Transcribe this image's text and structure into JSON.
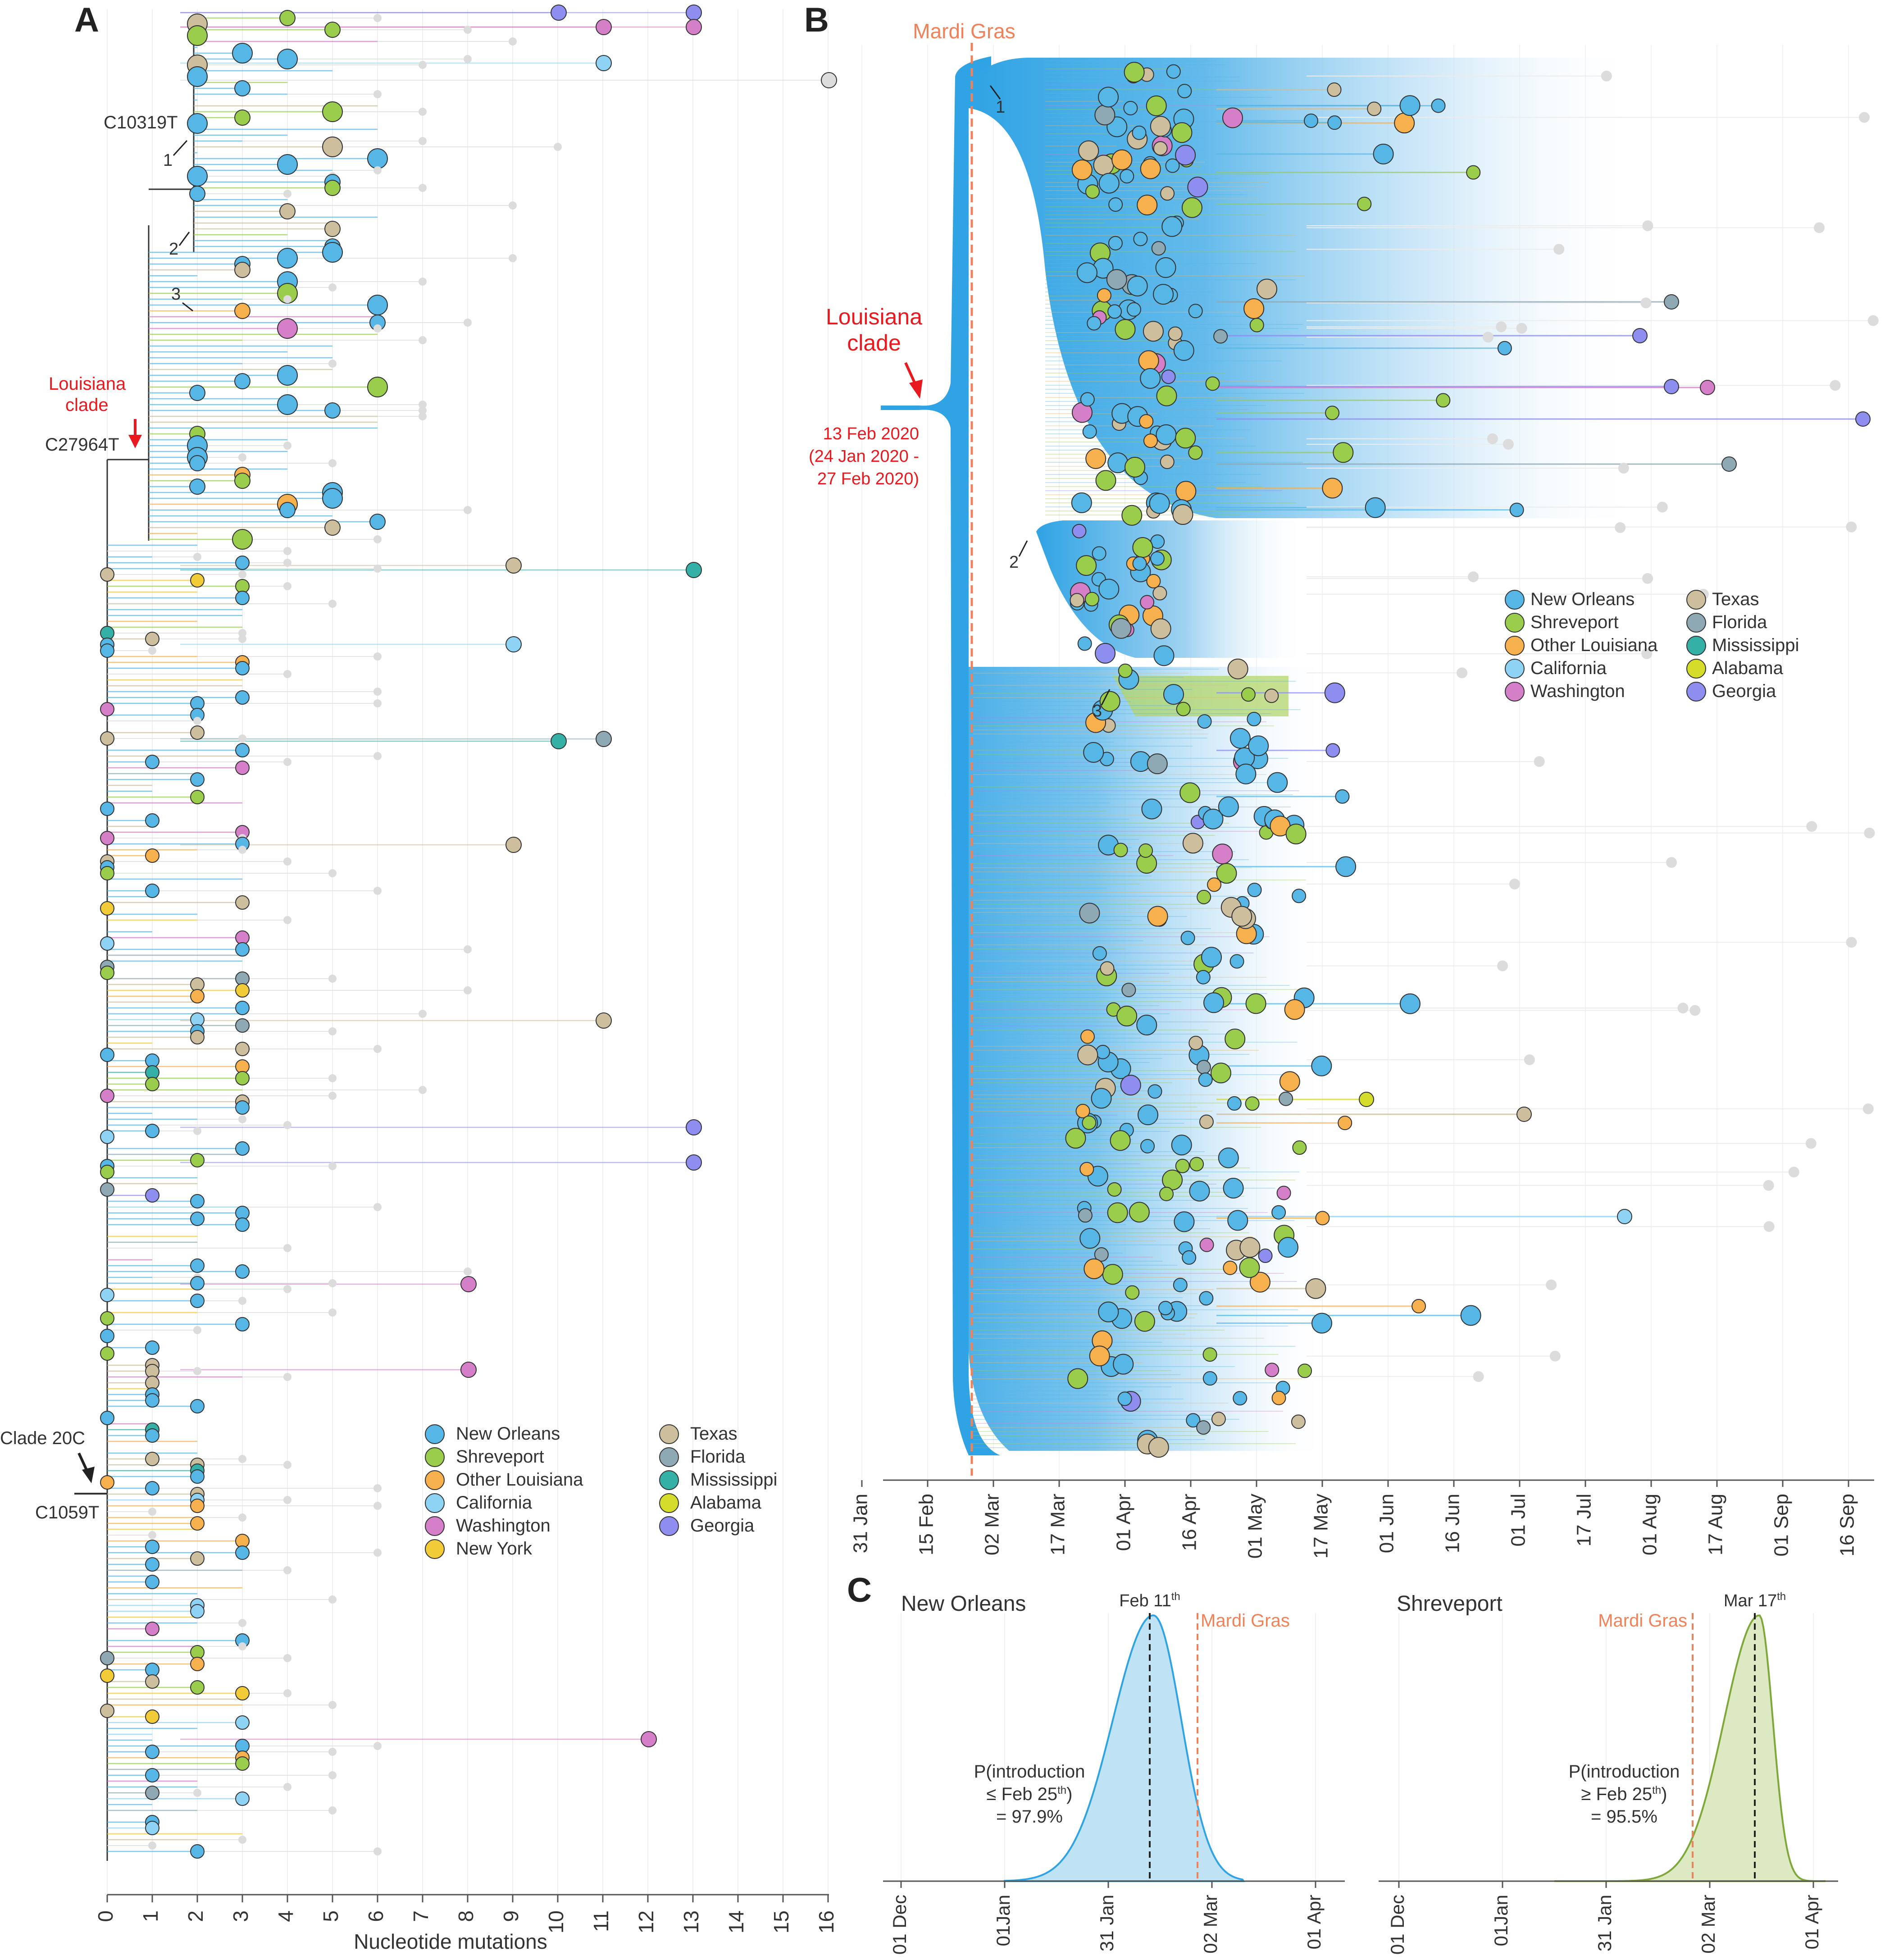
{
  "panels": {
    "a": "A",
    "b": "B",
    "c": "C"
  },
  "colors": {
    "New Orleans": "#56b7e6",
    "Shreveport": "#9acd4c",
    "Other Louisiana": "#f6b04e",
    "California": "#8fd3f4",
    "Washington": "#d47fc7",
    "New York": "#f1cc38",
    "Texas": "#cdbf9e",
    "Florida": "#8fa9b4",
    "Mississippi": "#34b0a6",
    "Alabama": "#d6dc2a",
    "Georgia": "#8e8ef0",
    "grey": "#dcdcdc",
    "mardi_gras": "#f0825a",
    "red": "#e8191f"
  },
  "chart_data": [
    {
      "type": "scatter",
      "panel": "A",
      "xlabel": "Nucleotide mutations",
      "ticks": [
        "0",
        "1",
        "2",
        "3",
        "4",
        "5",
        "6",
        "7",
        "8",
        "9",
        "10",
        "11",
        "12",
        "13",
        "14",
        "15",
        "16"
      ],
      "xlim": [
        0,
        16
      ],
      "annotations": {
        "c10319t": "C10319T",
        "c27964t": "C27964T",
        "c1059t": "C1059T",
        "clade20c": "Clade 20C",
        "la_clade": "Louisiana\nclade",
        "n1": "1",
        "n2": "2",
        "n3": "3"
      },
      "legend": [
        {
          "label": "New Orleans",
          "color": "#56b7e6"
        },
        {
          "label": "Shreveport",
          "color": "#9acd4c"
        },
        {
          "label": "Other Louisiana",
          "color": "#f6b04e"
        },
        {
          "label": "California",
          "color": "#8fd3f4"
        },
        {
          "label": "Washington",
          "color": "#d47fc7"
        },
        {
          "label": "New York",
          "color": "#f1cc38"
        },
        {
          "label": "Texas",
          "color": "#cdbf9e"
        },
        {
          "label": "Florida",
          "color": "#8fa9b4"
        },
        {
          "label": "Mississippi",
          "color": "#34b0a6"
        },
        {
          "label": "Alabama",
          "color": "#d6dc2a"
        },
        {
          "label": "Georgia",
          "color": "#8e8ef0"
        }
      ]
    },
    {
      "type": "scatter",
      "panel": "B",
      "ticks": [
        "31 Jan",
        "15 Feb",
        "02 Mar",
        "17 Mar",
        "01 Apr",
        "16 Apr",
        "01 May",
        "17 May",
        "01 Jun",
        "16 Jun",
        "01 Jul",
        "17 Jul",
        "01 Aug",
        "17 Aug",
        "01 Sep",
        "16 Sep"
      ],
      "annotations": {
        "mardi_gras": "Mardi Gras",
        "la_clade": "Louisiana\nclade",
        "date": "13 Feb 2020",
        "interval1": "(24 Jan 2020 -",
        "interval2": "27 Feb 2020)",
        "n1": "1",
        "n2": "2",
        "n3": "3"
      },
      "legend": [
        {
          "label": "New Orleans",
          "color": "#56b7e6"
        },
        {
          "label": "Shreveport",
          "color": "#9acd4c"
        },
        {
          "label": "Other Louisiana",
          "color": "#f6b04e"
        },
        {
          "label": "California",
          "color": "#8fd3f4"
        },
        {
          "label": "Washington",
          "color": "#d47fc7"
        },
        {
          "label": "Texas",
          "color": "#cdbf9e"
        },
        {
          "label": "Florida",
          "color": "#8fa9b4"
        },
        {
          "label": "Mississippi",
          "color": "#34b0a6"
        },
        {
          "label": "Alabama",
          "color": "#d6dc2a"
        },
        {
          "label": "Georgia",
          "color": "#8e8ef0"
        }
      ]
    },
    {
      "type": "area",
      "panel": "C-left",
      "title": "New Orleans",
      "ticks": [
        "01 Dec",
        "01Jan",
        "31 Jan",
        "02 Mar",
        "01 Apr"
      ],
      "peak_label": "Feb 11",
      "peak_sup": "th",
      "mardi_gras": "Mardi Gras",
      "prob_lines": [
        "P(introduction",
        "≤ Feb 25",
        "th",
        ")",
        "= 97.9%"
      ],
      "probability": "97.9%",
      "color": "#56b7e6"
    },
    {
      "type": "area",
      "panel": "C-right",
      "title": "Shreveport",
      "ticks": [
        "01 Dec",
        "01Jan",
        "31 Jan",
        "02 Mar",
        "01 Apr"
      ],
      "peak_label": "Mar 17",
      "peak_sup": "th",
      "mardi_gras": "Mardi Gras",
      "prob_lines": [
        "P(introduction",
        "≥ Feb 25",
        "th",
        ")",
        "= 95.5%"
      ],
      "probability": "95.5%",
      "color": "#9acd4c"
    }
  ]
}
